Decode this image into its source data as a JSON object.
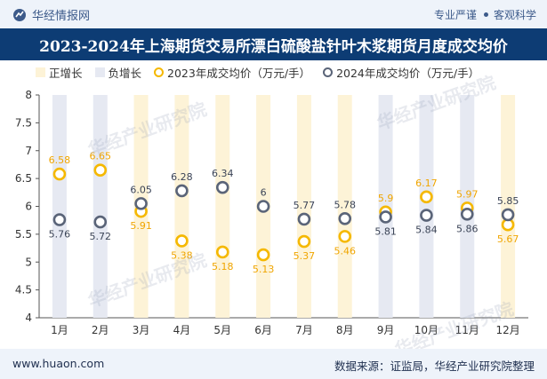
{
  "header": {
    "brand": "华经情报网",
    "tagline_left": "专业严谨",
    "tagline_right": "客观科学"
  },
  "colors": {
    "title_bg": "#0d3c74",
    "pos_bar": "#fdf3d7",
    "neg_bar": "#e6e9f2",
    "y2023": "#f5b800",
    "y2024": "#5a6478"
  },
  "chart_data": {
    "type": "line",
    "title": "2023-2024年上海期货交易所漂白硫酸盐针叶木浆期货月度成交均价",
    "legend": [
      "正增长",
      "负增长",
      "2023年成交均价（万元/手）",
      "2024年成交均价（万元/手）"
    ],
    "categories": [
      "1月",
      "2月",
      "3月",
      "4月",
      "5月",
      "6月",
      "7月",
      "8月",
      "9月",
      "10月",
      "11月",
      "12月"
    ],
    "series": [
      {
        "name": "2023年成交均价（万元/手）",
        "values": [
          6.58,
          6.65,
          5.91,
          5.38,
          5.18,
          5.13,
          5.37,
          5.46,
          5.9,
          6.17,
          5.97,
          5.67
        ]
      },
      {
        "name": "2024年成交均价（万元/手）",
        "values": [
          5.76,
          5.72,
          6.05,
          6.28,
          6.34,
          6,
          5.77,
          5.78,
          5.81,
          5.84,
          5.86,
          5.85
        ]
      }
    ],
    "value_labels_2023": [
      "6.58",
      "6.65",
      "5.91",
      "5.38",
      "5.18",
      "5.13",
      "5.37",
      "5.46",
      "5.9",
      "6.17",
      "5.97",
      "5.67"
    ],
    "value_labels_2024": [
      "5.76",
      "5.72",
      "6.05",
      "6.28",
      "6.34",
      "6",
      "5.77",
      "5.78",
      "5.81",
      "5.84",
      "5.86",
      "5.85"
    ],
    "ylim": [
      4,
      8
    ],
    "yticks": [
      "4",
      "4.5",
      "5",
      "5.5",
      "6",
      "6.5",
      "7",
      "7.5",
      "8"
    ]
  },
  "watermarks": [
    "华经产业研究院",
    "华经产业研究院",
    "华经产业研究院",
    "华经产业研究院"
  ],
  "footer": {
    "url": "www.huaon.com",
    "source": "数据来源：证监局，华经产业研究院整理"
  }
}
